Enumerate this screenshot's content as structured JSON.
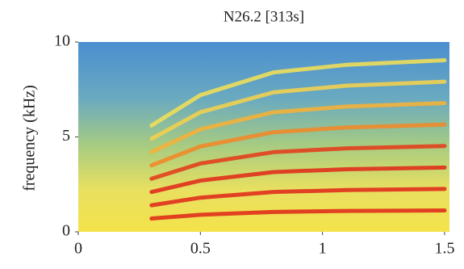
{
  "chart_data": {
    "type": "spectrogram",
    "title": "N26.2 [313s]",
    "y_label": "frequency (kHz)",
    "xlim": [
      0,
      1.52
    ],
    "ylim": [
      0,
      10
    ],
    "xticks": [
      0,
      0.5,
      1,
      1.5
    ],
    "yticks": [
      0,
      5,
      10
    ],
    "x": [
      0.3,
      0.5,
      0.8,
      1.1,
      1.5
    ],
    "series": [
      {
        "color": "#e0301c",
        "values": [
          0.7,
          0.9,
          1.05,
          1.1,
          1.13
        ]
      },
      {
        "color": "#e0301c",
        "values": [
          1.4,
          1.8,
          2.1,
          2.2,
          2.26
        ]
      },
      {
        "color": "#e0301c",
        "values": [
          2.1,
          2.7,
          3.15,
          3.3,
          3.39
        ]
      },
      {
        "color": "#e2401e",
        "values": [
          2.8,
          3.6,
          4.2,
          4.4,
          4.52
        ]
      },
      {
        "color": "#f08a2a",
        "values": [
          3.5,
          4.5,
          5.25,
          5.5,
          5.65
        ]
      },
      {
        "color": "#f3b13a",
        "values": [
          4.2,
          5.4,
          6.3,
          6.6,
          6.78
        ]
      },
      {
        "color": "#f0d050",
        "values": [
          4.9,
          6.3,
          7.35,
          7.7,
          7.91
        ]
      },
      {
        "color": "#eede5a",
        "values": [
          5.6,
          7.2,
          8.4,
          8.8,
          9.04
        ]
      }
    ]
  }
}
